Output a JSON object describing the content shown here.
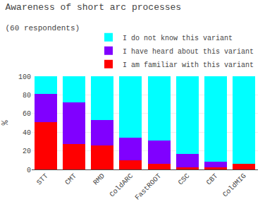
{
  "chart_data": {
    "type": "bar",
    "stacked": true,
    "title": "Awareness of short arc processes",
    "subtitle": "(60 respondents)",
    "ylabel": "%",
    "categories": [
      "STT",
      "CMT",
      "RMD",
      "ColdARC",
      "FastROOT",
      "CSC",
      "CBT",
      "ColdMIG"
    ],
    "series": [
      {
        "name": "I am familiar with this variant",
        "color": "#ff0000",
        "values": [
          51,
          27,
          26,
          10,
          6,
          2,
          2,
          6
        ]
      },
      {
        "name": "I have heard about this variant",
        "color": "#8000ff",
        "values": [
          30,
          45,
          27,
          24,
          25,
          15,
          6,
          0
        ]
      },
      {
        "name": "I do not know this variant",
        "color": "#00ffff",
        "values": [
          19,
          28,
          47,
          66,
          69,
          83,
          92,
          94
        ]
      }
    ],
    "ylim": [
      0,
      100
    ],
    "yticks": [
      0,
      20,
      40,
      60,
      80,
      100
    ],
    "grid": true,
    "legend": "upper right"
  }
}
